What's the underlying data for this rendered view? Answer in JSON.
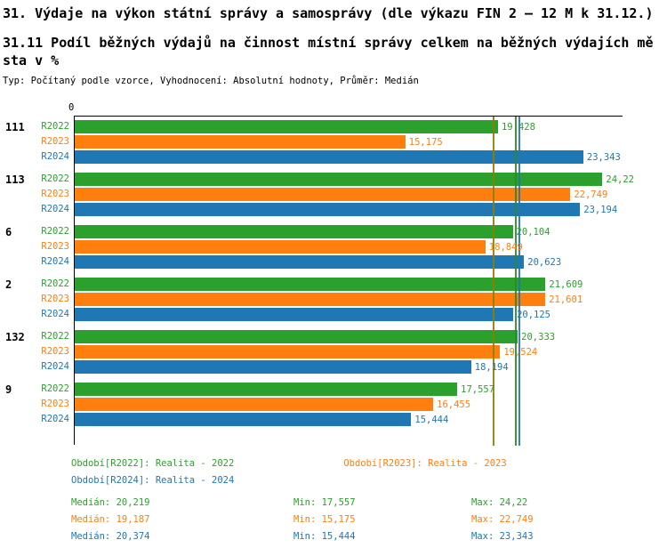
{
  "header": {
    "title": "31. Výdaje na výkon státní správy a samosprávy (dle výkazu FIN 2 – 12 M k 31.12.)",
    "subtitle": "31.11 Podíl běžných výdajů na činnost místní správy celkem na běžných výdajích města v %",
    "meta": "Typ: Počítaný podle vzorce, Vyhodnocení: Absolutní hodnoty, Průměr: Medián"
  },
  "axis": {
    "origin_label": "0",
    "x_min": 0,
    "x_max": 25
  },
  "chart_data": {
    "type": "bar",
    "orientation": "horizontal",
    "title": "31.11 Podíl běžných výdajů na činnost místní správy celkem na běžných výdajích města v %",
    "value_unit": "%",
    "grid": false,
    "legend_position": "bottom",
    "xlim": [
      0,
      25
    ],
    "categories": [
      "111",
      "113",
      "6",
      "2",
      "132",
      "9"
    ],
    "series": [
      {
        "name": "R2022",
        "color": "#2ca02c",
        "median_line_color": "#2c8a2c",
        "values": [
          19.428,
          24.22,
          20.104,
          21.609,
          20.333,
          17.557
        ],
        "value_labels": [
          "19,428",
          "24,22",
          "20,104",
          "21,609",
          "20,333",
          "17,557"
        ],
        "median": 20.219
      },
      {
        "name": "R2023",
        "color": "#ff7f0e",
        "median_line_color": "#8b8000",
        "values": [
          15.175,
          22.749,
          18.849,
          21.601,
          19.524,
          16.455
        ],
        "value_labels": [
          "15,175",
          "22,749",
          "18,849",
          "21,601",
          "19,524",
          "16,455"
        ],
        "median": 19.187
      },
      {
        "name": "R2024",
        "color": "#1f77b4",
        "median_line_color": "#1f77b4",
        "values": [
          23.343,
          23.194,
          20.623,
          20.125,
          18.194,
          15.444
        ],
        "value_labels": [
          "23,343",
          "23,194",
          "20,623",
          "20,125",
          "18,194",
          "15,444"
        ],
        "median": 20.374
      }
    ]
  },
  "legend": {
    "items": [
      {
        "label": "Období[R2022]: Realita - 2022",
        "series": "R2022"
      },
      {
        "label": "Období[R2023]: Realita - 2023",
        "series": "R2023"
      },
      {
        "label": "Období[R2024]: Realita - 2024",
        "series": "R2024"
      }
    ]
  },
  "stats": {
    "rows": [
      {
        "series": "R2022",
        "median": "Medián: 20,219",
        "min": "Min: 17,557",
        "max": "Max: 24,22"
      },
      {
        "series": "R2023",
        "median": "Medián: 19,187",
        "min": "Min: 15,175",
        "max": "Max: 22,749"
      },
      {
        "series": "R2024",
        "median": "Medián: 20,374",
        "min": "Min: 15,444",
        "max": "Max: 23,343"
      }
    ]
  }
}
